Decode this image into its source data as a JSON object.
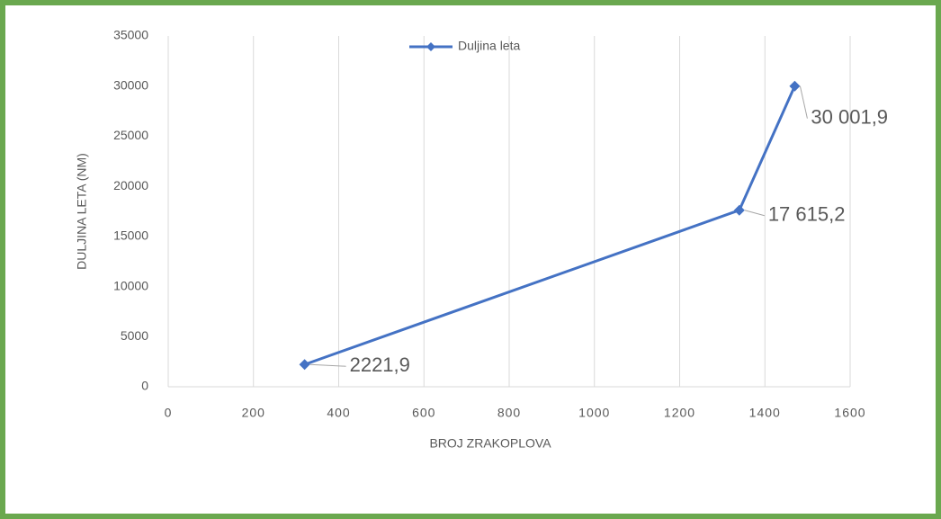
{
  "chart_data": {
    "type": "line",
    "x_label": "BROJ ZRAKOPLOVA",
    "y_label": "DULJINA LETA (NM)",
    "x": [
      320,
      1340,
      1470
    ],
    "series": [
      {
        "name": "Duljina leta",
        "color": "#4472c4",
        "values": [
          2221.9,
          17615.2,
          30001.9
        ],
        "value_labels": [
          "2221,9",
          "17 615,2",
          "30 001,9"
        ]
      }
    ],
    "xlim": [
      0,
      1600
    ],
    "xticks": [
      0,
      200,
      400,
      600,
      800,
      1000,
      1200,
      1400,
      1600
    ],
    "ylim": [
      0,
      35000
    ],
    "yticks": [
      0,
      5000,
      10000,
      15000,
      20000,
      25000,
      30000,
      35000
    ],
    "grid": "x",
    "legend": "top"
  }
}
